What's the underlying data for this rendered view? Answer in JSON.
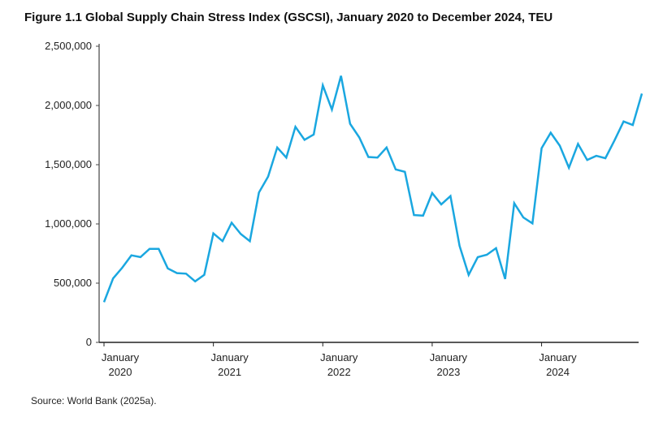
{
  "chart_data": {
    "type": "line",
    "title": "Figure 1.1 Global Supply Chain Stress Index (GSCSI), January 2020 to December 2024, TEU",
    "source": "Source: World Bank (2025a).",
    "xlabel": "",
    "ylabel": "",
    "ylim": [
      0,
      2500000
    ],
    "yticks": [
      "0",
      "500,000",
      "1,000,000",
      "1,500,000",
      "2,000,000",
      "2,500,000"
    ],
    "xticks": [
      {
        "month": "January",
        "year": "2020"
      },
      {
        "month": "January",
        "year": "2021"
      },
      {
        "month": "January",
        "year": "2022"
      },
      {
        "month": "January",
        "year": "2023"
      },
      {
        "month": "January",
        "year": "2024"
      }
    ],
    "grid": false,
    "line_color": "#1aa7e0",
    "x_start": "2020-01",
    "x_end": "2024-12",
    "series": [
      {
        "values": [
          340000,
          540000,
          630000,
          735000,
          720000,
          790000,
          790000,
          625000,
          585000,
          580000,
          515000,
          570000,
          920000,
          855000,
          1010000,
          915000,
          855000,
          1265000,
          1400000,
          1645000,
          1560000,
          1820000,
          1710000,
          1755000,
          2170000,
          1965000,
          2250000,
          1845000,
          1730000,
          1565000,
          1560000,
          1645000,
          1460000,
          1440000,
          1075000,
          1070000,
          1260000,
          1165000,
          1235000,
          815000,
          570000,
          720000,
          740000,
          795000,
          535000,
          1175000,
          1055000,
          1005000,
          1640000,
          1770000,
          1660000,
          1475000,
          1675000,
          1540000,
          1575000,
          1555000,
          1705000,
          1865000,
          1835000,
          2100000
        ]
      }
    ]
  }
}
